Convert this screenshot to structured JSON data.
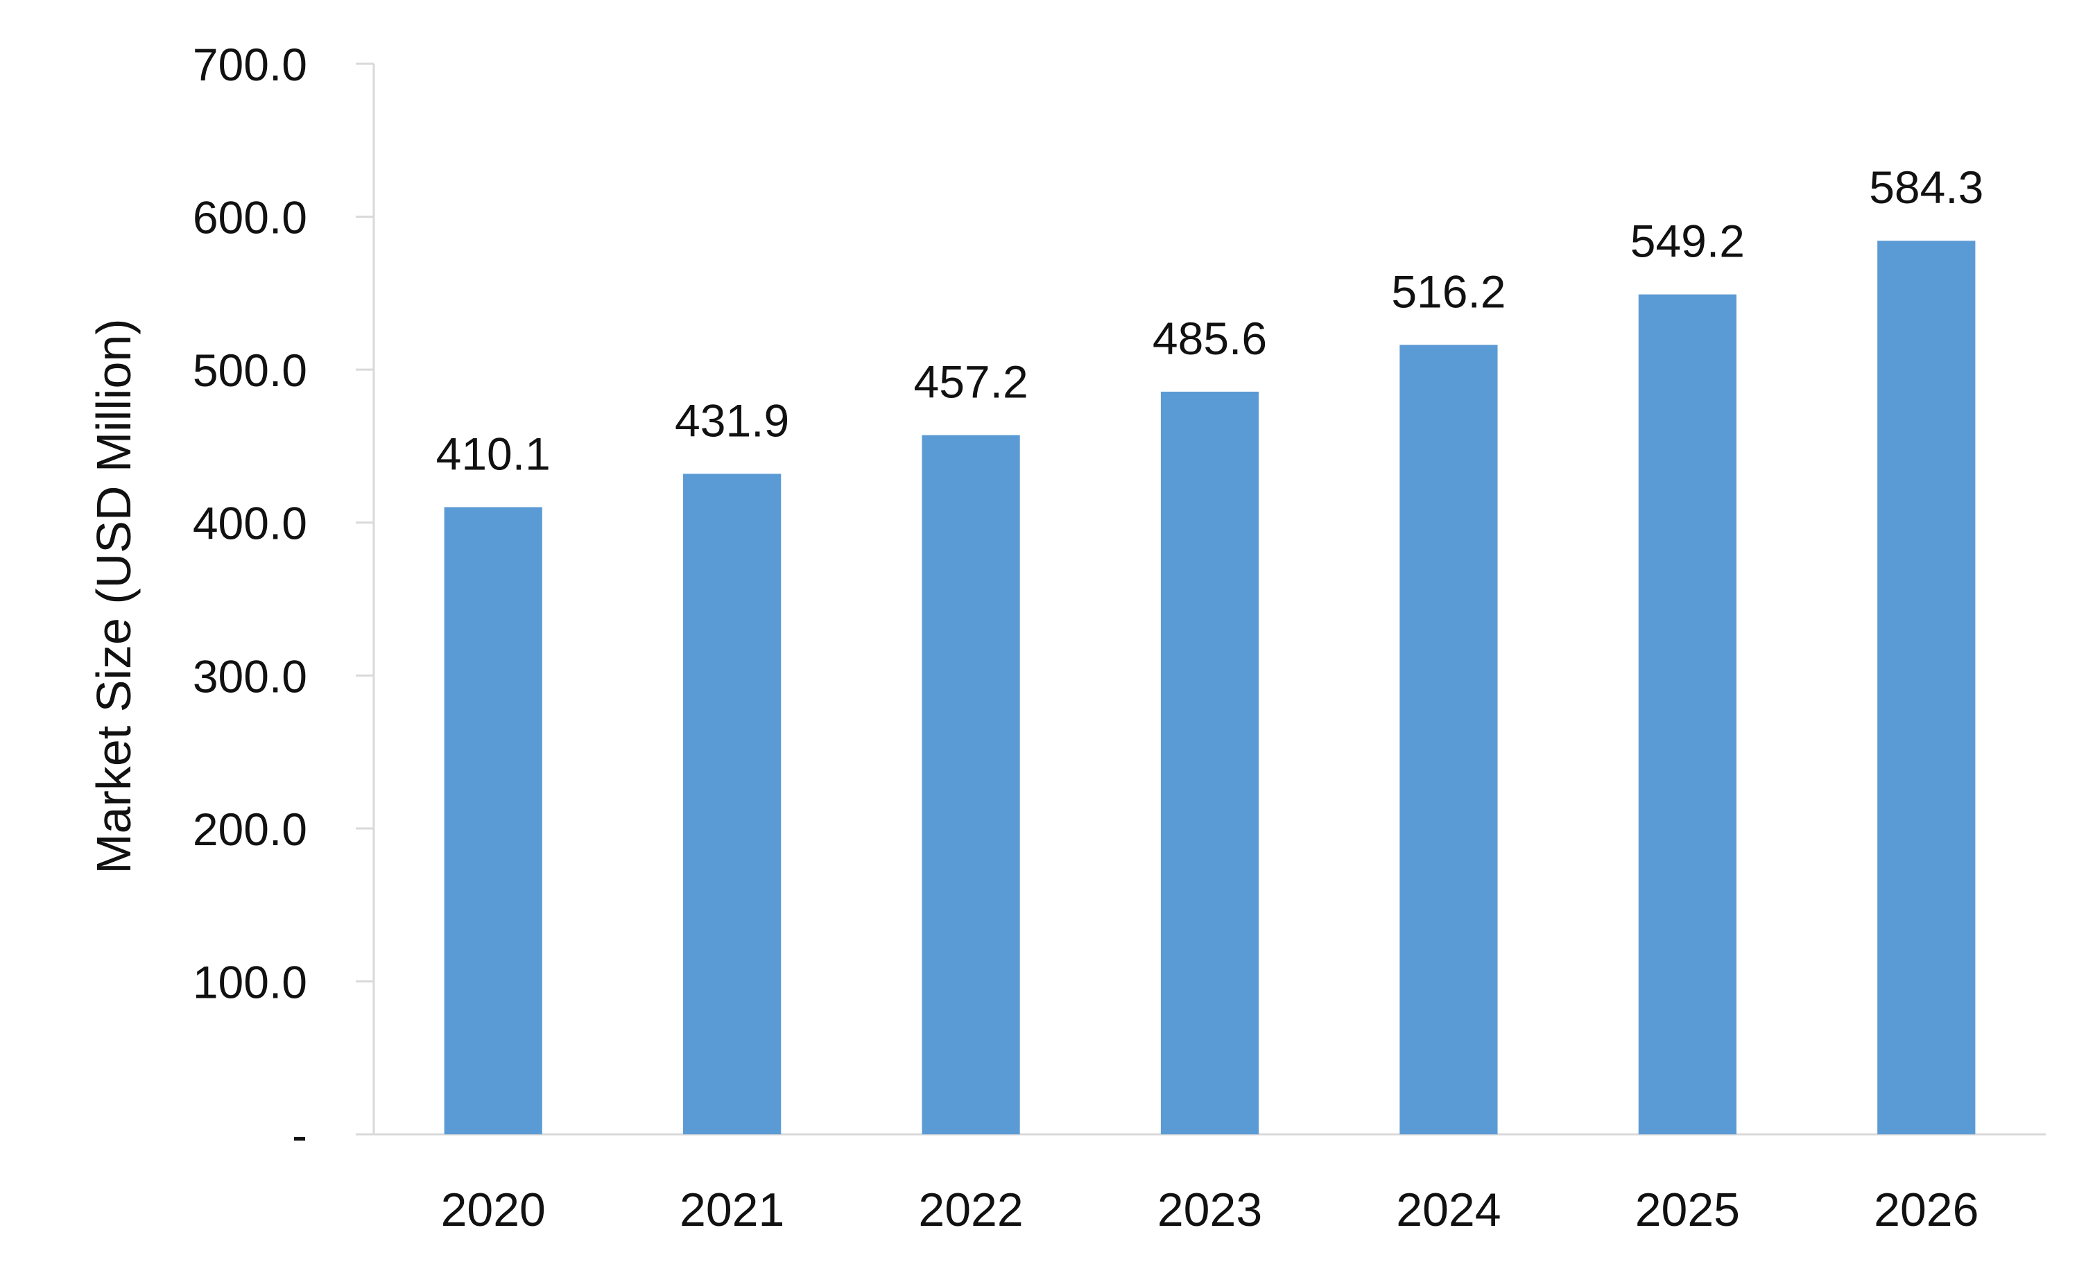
{
  "chart_data": {
    "type": "bar",
    "title": "",
    "xlabel": "",
    "ylabel": "Market Size (USD Million)",
    "categories": [
      "2020",
      "2021",
      "2022",
      "2023",
      "2024",
      "2025",
      "2026"
    ],
    "values": [
      410.1,
      431.9,
      457.2,
      485.6,
      516.2,
      549.2,
      584.3
    ],
    "value_labels": [
      "410.1",
      "431.9",
      "457.2",
      "485.6",
      "516.2",
      "549.2",
      "584.3"
    ],
    "ylim": [
      0,
      700
    ],
    "yticks": [
      0,
      100,
      200,
      300,
      400,
      500,
      600,
      700
    ],
    "ytick_labels": [
      "-",
      "100.0",
      "200.0",
      "300.0",
      "400.0",
      "500.0",
      "600.0",
      "700.0"
    ],
    "grid": false,
    "legend": "none",
    "bar_color": "#5b9bd5",
    "axis_color": "#d9d9d9"
  }
}
